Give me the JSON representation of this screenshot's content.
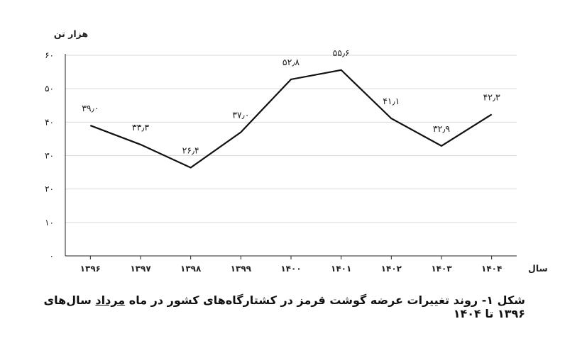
{
  "chart_data": {
    "type": "line",
    "ylabel": "هزار تن",
    "xlabel": "سال",
    "ylim": [
      0,
      60
    ],
    "yticks": [
      "۰",
      "۱۰",
      "۲۰",
      "۳۰",
      "۴۰",
      "۵۰",
      "۶۰"
    ],
    "categories": [
      "۱۳۹۶",
      "۱۳۹۷",
      "۱۳۹۸",
      "۱۳۹۹",
      "۱۴۰۰",
      "۱۴۰۱",
      "۱۴۰۲",
      "۱۴۰۳",
      "۱۴۰۴"
    ],
    "series": [
      {
        "values": [
          39.0,
          33.3,
          26.4,
          37.0,
          52.8,
          55.6,
          41.1,
          32.9,
          42.3
        ],
        "labels": [
          "۳۹٫۰",
          "۳۳٫۳",
          "۲۶٫۴",
          "۳۷٫۰",
          "۵۲٫۸",
          "۵۵٫۶",
          "۴۱٫۱",
          "۳۲٫۹",
          "۴۲٫۳"
        ]
      }
    ],
    "grid": true,
    "line_color": "#111111",
    "grid_color": "#d9d9d9"
  },
  "caption": {
    "before": "شکل ۱- روند تغییرات عرضه گوشت قرمز در کشتارگاه‌های کشور در ماه ",
    "underlined": "مرداد",
    "after": " سال‌های ۱۳۹۶ تا ۱۴۰۴"
  }
}
